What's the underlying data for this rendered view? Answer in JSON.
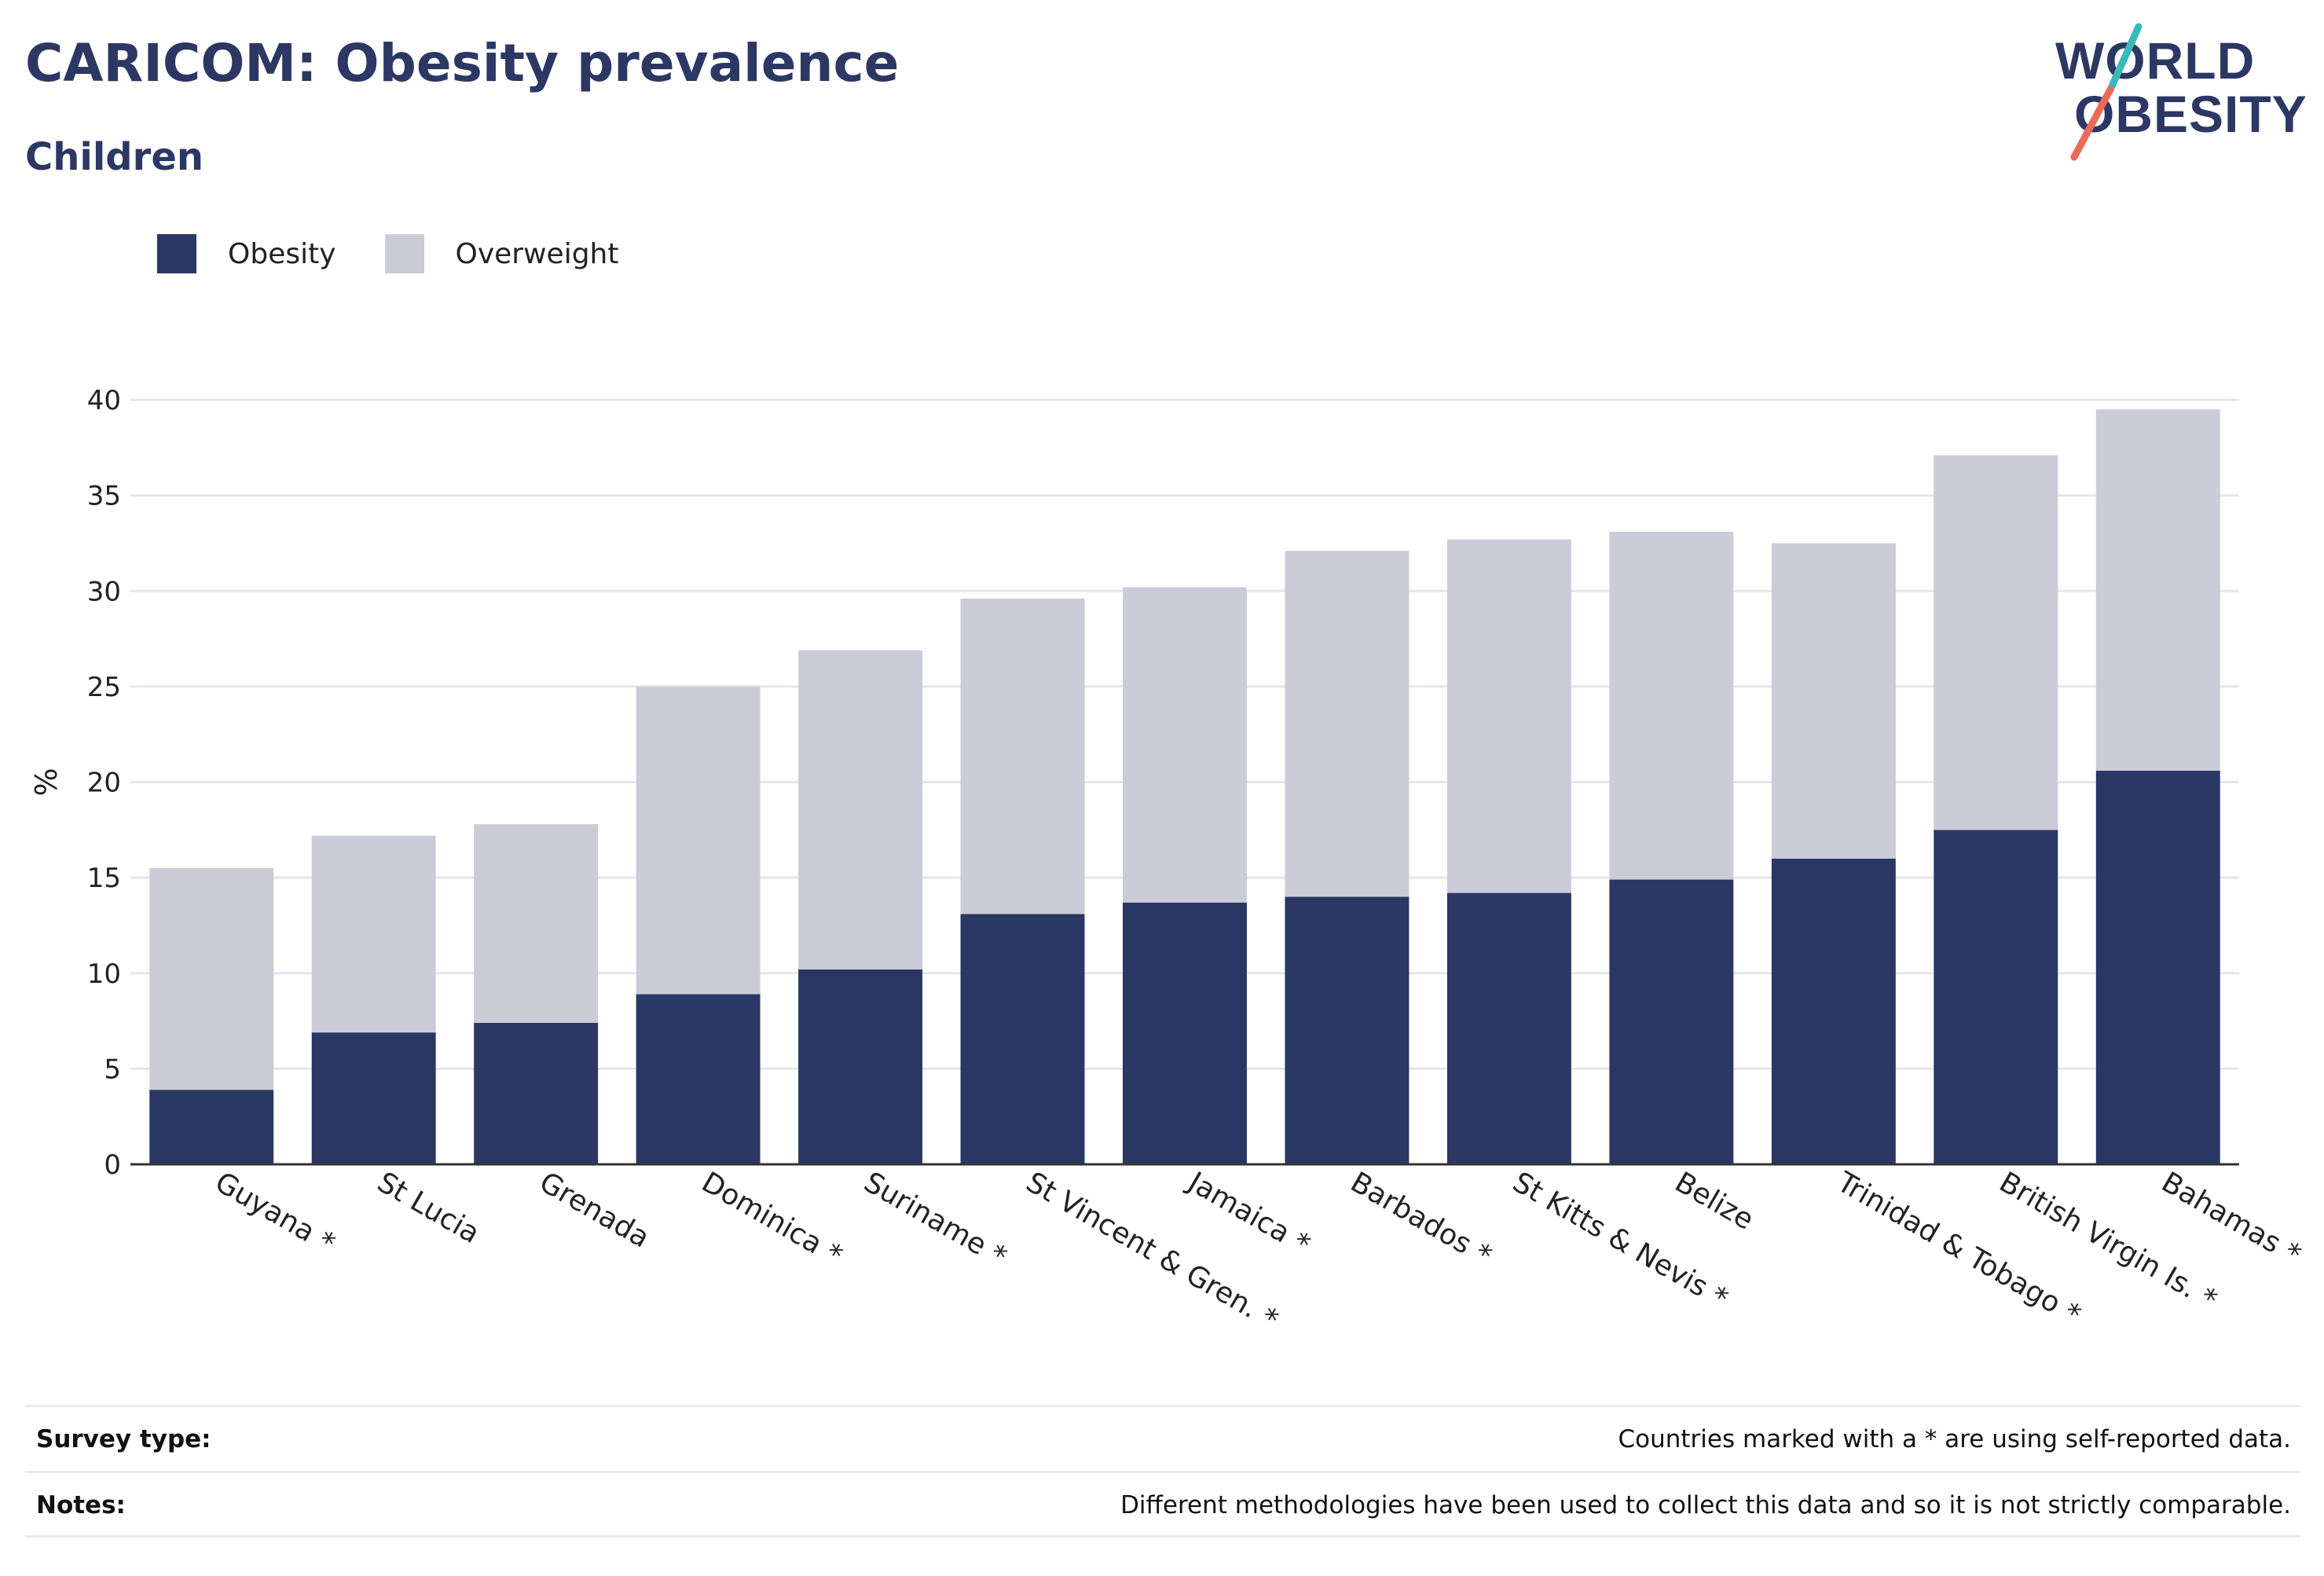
{
  "header": {
    "title": "CARICOM: Obesity prevalence",
    "subtitle": "Children"
  },
  "logo": {
    "line1": "WORLD",
    "line2": "OBESITY",
    "colors": {
      "text": "#2c3764",
      "teal": "#3bb9b9",
      "coral": "#ec6a55"
    }
  },
  "legend": {
    "items": [
      {
        "label": "Obesity",
        "color": "#2b3765"
      },
      {
        "label": "Overweight",
        "color": "#cbccd8"
      }
    ]
  },
  "chart_data": {
    "type": "bar",
    "stacked": true,
    "ylabel": "%",
    "xlabel": "",
    "ylim": [
      0,
      40
    ],
    "yticks": [
      0,
      5,
      10,
      15,
      20,
      25,
      30,
      35,
      40
    ],
    "grid": true,
    "legend_position": "top-left",
    "categories": [
      "Guyana *",
      "St Lucia",
      "Grenada",
      "Dominica *",
      "Suriname *",
      "St Vincent & Gren. *",
      "Jamaica *",
      "Barbados *",
      "St Kitts & Nevis *",
      "Belize",
      "Trinidad & Tobago *",
      "British Virgin Is. *",
      "Bahamas *"
    ],
    "series": [
      {
        "name": "Obesity",
        "color": "#2b3765",
        "values": [
          3.9,
          6.9,
          7.4,
          8.9,
          10.2,
          13.1,
          13.7,
          14.0,
          14.2,
          14.9,
          16.0,
          17.5,
          20.6
        ]
      },
      {
        "name": "Overweight",
        "color": "#cbccd8",
        "values": [
          11.6,
          10.3,
          10.4,
          16.1,
          16.7,
          16.5,
          16.5,
          18.1,
          18.5,
          18.2,
          16.5,
          19.6,
          18.9
        ]
      }
    ]
  },
  "footer": {
    "survey_label": "Survey type:",
    "survey_value": "Countries marked with a * are using self-reported data.",
    "notes_label": "Notes:",
    "notes_value": "Different methodologies have been used to collect this data and so it is not strictly comparable."
  }
}
